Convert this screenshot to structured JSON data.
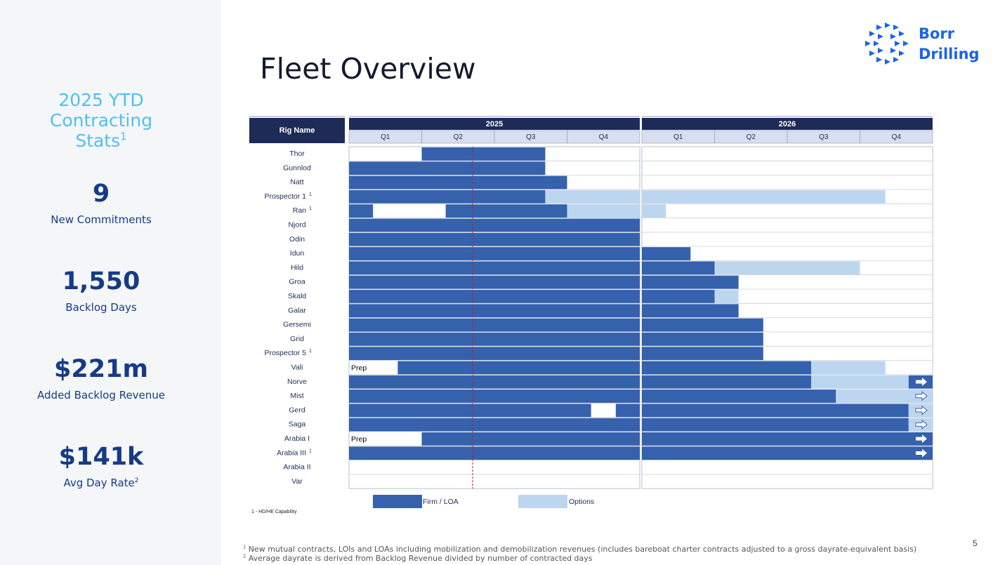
{
  "sidebar": {
    "heading": "2025 YTD Contracting Stats",
    "heading_lines": [
      "2025 YTD",
      "Contracting",
      "Stats"
    ],
    "heading_sup": "1",
    "stats": [
      {
        "value": "9",
        "label": "New Commitments"
      },
      {
        "value": "1,550",
        "label": "Backlog Days"
      },
      {
        "value": "$221m",
        "label": "Added Backlog Revenue"
      },
      {
        "value": "$141k",
        "label": "Avg Day Rate",
        "sup": "2"
      }
    ]
  },
  "title": "Fleet Overview",
  "logo": {
    "line1": "Borr",
    "line2": "Drilling"
  },
  "colors": {
    "firm": "#3561ad",
    "options": "#bdd6f0",
    "header_dark": "#1e2b57",
    "quarter_bg": "#d7dff0",
    "marker": "#c01c1c"
  },
  "chart": {
    "corner_label": "Rig Name",
    "years": [
      "2025",
      "2026"
    ],
    "quarters": [
      "Q1",
      "Q2",
      "Q3",
      "Q4"
    ],
    "today_marker": 1.7,
    "rows": [
      {
        "name": "Thor",
        "segments": [
          {
            "kind": "firm",
            "start": 1,
            "end": 2.7
          }
        ]
      },
      {
        "name": "Gunnlod",
        "segments": [
          {
            "kind": "firm",
            "start": 0,
            "end": 2.7
          }
        ]
      },
      {
        "name": "Natt",
        "segments": [
          {
            "kind": "firm",
            "start": 0,
            "end": 3.0
          }
        ]
      },
      {
        "name": "Prospector 1",
        "sup": "1",
        "segments": [
          {
            "kind": "firm",
            "start": 0,
            "end": 2.7
          },
          {
            "kind": "option",
            "start": 2.7,
            "end": 7.35
          }
        ]
      },
      {
        "name": "Ran",
        "sup": "1",
        "segments": [
          {
            "kind": "firm",
            "start": 0,
            "end": 0.33
          },
          {
            "kind": "firm",
            "start": 1.33,
            "end": 3.0
          },
          {
            "kind": "option",
            "start": 3.0,
            "end": 4.33
          }
        ]
      },
      {
        "name": "Njord",
        "segments": [
          {
            "kind": "firm",
            "start": 0,
            "end": 4
          }
        ]
      },
      {
        "name": "Odin",
        "segments": [
          {
            "kind": "firm",
            "start": 0,
            "end": 4
          }
        ]
      },
      {
        "name": "Idun",
        "segments": [
          {
            "kind": "firm",
            "start": 0,
            "end": 4.67
          }
        ]
      },
      {
        "name": "Hild",
        "segments": [
          {
            "kind": "firm",
            "start": 0,
            "end": 5.0
          },
          {
            "kind": "option",
            "start": 5.0,
            "end": 7.0
          }
        ]
      },
      {
        "name": "Groa",
        "segments": [
          {
            "kind": "firm",
            "start": 0,
            "end": 5.33
          }
        ]
      },
      {
        "name": "Skald",
        "segments": [
          {
            "kind": "firm",
            "start": 0,
            "end": 5.0
          },
          {
            "kind": "option",
            "start": 5.0,
            "end": 5.33
          }
        ]
      },
      {
        "name": "Galar",
        "segments": [
          {
            "kind": "firm",
            "start": 0,
            "end": 5.33
          }
        ]
      },
      {
        "name": "Gersemi",
        "segments": [
          {
            "kind": "firm",
            "start": 0,
            "end": 5.67
          }
        ]
      },
      {
        "name": "Grid",
        "segments": [
          {
            "kind": "firm",
            "start": 0,
            "end": 5.67
          }
        ]
      },
      {
        "name": "Prospector 5",
        "sup": "1",
        "segments": [
          {
            "kind": "firm",
            "start": 0,
            "end": 5.67
          }
        ]
      },
      {
        "name": "Vali",
        "prep": {
          "label": "Prep",
          "start": 0,
          "end": 0.67
        },
        "segments": [
          {
            "kind": "firm",
            "start": 0.67,
            "end": 6.33
          },
          {
            "kind": "option",
            "start": 6.33,
            "end": 7.35
          }
        ]
      },
      {
        "name": "Norve",
        "arrow": "solid",
        "segments": [
          {
            "kind": "firm",
            "start": 0,
            "end": 6.33
          },
          {
            "kind": "option",
            "start": 6.33,
            "end": 7.67
          },
          {
            "kind": "firm",
            "start": 7.67,
            "end": 8
          }
        ]
      },
      {
        "name": "Mist",
        "arrow": "outline",
        "segments": [
          {
            "kind": "firm",
            "start": 0,
            "end": 6.67
          },
          {
            "kind": "option",
            "start": 6.67,
            "end": 8
          }
        ]
      },
      {
        "name": "Gerd",
        "arrow": "outline",
        "segments": [
          {
            "kind": "firm",
            "start": 0,
            "end": 3.33
          },
          {
            "kind": "firm",
            "start": 3.67,
            "end": 7.67
          },
          {
            "kind": "option",
            "start": 7.67,
            "end": 8
          }
        ]
      },
      {
        "name": "Saga",
        "arrow": "outline",
        "segments": [
          {
            "kind": "firm",
            "start": 0,
            "end": 7.67
          },
          {
            "kind": "option",
            "start": 7.67,
            "end": 8
          }
        ]
      },
      {
        "name": "Arabia I",
        "arrow": "solid",
        "prep": {
          "label": "Prep",
          "start": 0,
          "end": 1.0
        },
        "segments": [
          {
            "kind": "firm",
            "start": 1.0,
            "end": 8
          }
        ]
      },
      {
        "name": "Arabia III",
        "sup": "1",
        "arrow": "solid",
        "segments": [
          {
            "kind": "firm",
            "start": 0,
            "end": 8
          }
        ]
      },
      {
        "name": "Arabia II",
        "segments": []
      },
      {
        "name": "Var",
        "segments": []
      }
    ]
  },
  "legend": [
    {
      "kind": "firm",
      "label": "Firm / LOA"
    },
    {
      "kind": "option",
      "label": "Options"
    }
  ],
  "small_note": "1 - HD/HE Capability",
  "footnotes": [
    {
      "sup": "1",
      "text": "New mutual contracts, LOIs and LOAs including mobilization and demobilization revenues (includes bareboat charter contracts adjusted to a gross dayrate-equivalent basis)"
    },
    {
      "sup": "2",
      "text": "Average dayrate is derived from Backlog Revenue divided by number of contracted days"
    }
  ],
  "page_number": "5"
}
